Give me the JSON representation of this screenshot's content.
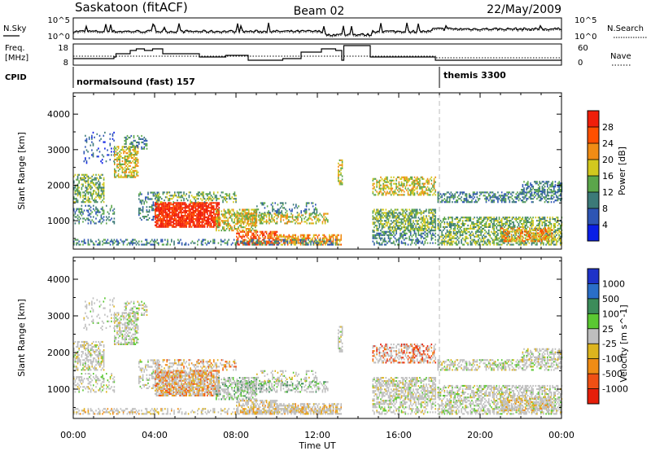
{
  "header": {
    "station": "Saskatoon (fitACF)",
    "beam": "Beam 02",
    "date": "22/May/2009"
  },
  "top_panels": {
    "noise_left_label": "N.Sky",
    "noise_ticks_left": [
      "10^5",
      "10^0"
    ],
    "noise_ticks_right": [
      "10^5",
      "10^0"
    ],
    "noise_right_label": "N.Search",
    "freq_label_line1": "Freq.",
    "freq_label_line2": "[MHz]",
    "freq_ticks": [
      "18",
      "8"
    ],
    "nave_ticks": [
      "60",
      "0"
    ],
    "nave_label": "Nave",
    "cpid_label": "CPID",
    "cpid_1": "normalsound (fast) 157",
    "cpid_2": "themis 3300"
  },
  "chart_data": [
    {
      "type": "heatmap",
      "title": "",
      "xlabel": "",
      "ylabel": "Slant Range [km]",
      "x_ticks": [
        0,
        4,
        8,
        12,
        16,
        20,
        24
      ],
      "y_ticks": [
        1000,
        2000,
        3000,
        4000
      ],
      "xlim": [
        0,
        24
      ],
      "ylim": [
        200,
        4600
      ],
      "colorbar": {
        "label": "Power [dB]",
        "ticks": [
          "4",
          "8",
          "12",
          "16",
          "20",
          "24",
          "28"
        ],
        "range": [
          0,
          30
        ],
        "colors": [
          "#0a1ee6",
          "#2e55b4",
          "#3c7a78",
          "#5ba64a",
          "#d2c81e",
          "#f08c14",
          "#ff5000",
          "#f01e0a"
        ]
      }
    },
    {
      "type": "heatmap",
      "title": "",
      "xlabel": "Time UT",
      "ylabel": "Slant Range [km]",
      "x_tick_labels": [
        "00:00",
        "04:00",
        "08:00",
        "12:00",
        "16:00",
        "20:00",
        "00:00"
      ],
      "y_ticks": [
        1000,
        2000,
        3000,
        4000
      ],
      "xlim": [
        0,
        24
      ],
      "ylim": [
        200,
        4600
      ],
      "colorbar": {
        "label": "Velocity [m s^-1]",
        "ticks": [
          "1000",
          "500",
          "100",
          "25",
          "-25",
          "-100",
          "-500",
          "-1000"
        ],
        "colors": [
          "#1e32c8",
          "#2a6ec8",
          "#3c8c5a",
          "#5ac832",
          "#bebebe",
          "#dcb41e",
          "#f08c14",
          "#f05014",
          "#e61e0a"
        ]
      }
    }
  ]
}
